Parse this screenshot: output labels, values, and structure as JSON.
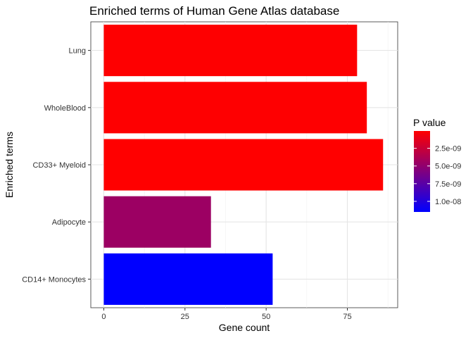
{
  "chart_data": {
    "type": "bar",
    "orientation": "horizontal",
    "title": "Enriched terms of Human Gene Atlas database",
    "xlabel": "Gene count",
    "ylabel": "Enriched terms",
    "categories": [
      "Lung",
      "WholeBlood",
      "CD33+ Myeloid",
      "Adipocyte",
      "CD14+ Monocytes"
    ],
    "values": [
      78,
      81,
      86,
      33,
      52
    ],
    "p_values": [
      8e-11,
      1e-10,
      5e-11,
      4.5e-09,
      1.15e-08
    ],
    "xlim": [
      -4,
      90.5
    ],
    "xticks": [
      0,
      25,
      50,
      75
    ],
    "xtick_labels": [
      "0",
      "25",
      "50",
      "75"
    ],
    "grid": true,
    "legend": {
      "title": "P value",
      "placement": "right",
      "min": 5e-11,
      "max": 1.15e-08,
      "ticks": [
        2.5e-09,
        5e-09,
        7.5e-09,
        1e-08
      ],
      "tick_labels": [
        "2.5e-09",
        "5.0e-09",
        "7.5e-09",
        "1.0e-08"
      ],
      "low_color": "#ff0000",
      "high_color": "#0000ff"
    }
  }
}
